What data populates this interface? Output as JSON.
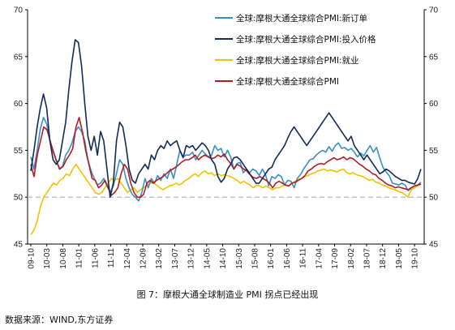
{
  "caption": "图 7：摩根大通全球制造业 PMI 拐点已经出现",
  "source": "数据来源：WIND,东方证券",
  "chart_data": {
    "type": "line",
    "title": "",
    "xlabel": "",
    "ylabel": "",
    "ylim": [
      45,
      70
    ],
    "y_ticks": [
      45,
      50,
      55,
      60,
      65,
      70
    ],
    "y_right_ticks": [
      45,
      50,
      55,
      60,
      65,
      70
    ],
    "reference_line": 50,
    "x_tick_labels": [
      "09-10",
      "10-03",
      "10-08",
      "11-01",
      "11-06",
      "11-11",
      "12-04",
      "12-09",
      "13-02",
      "13-07",
      "13-12",
      "14-05",
      "14-10",
      "15-03",
      "15-08",
      "16-01",
      "16-06",
      "16-11",
      "17-04",
      "17-09",
      "18-02",
      "18-07",
      "18-12",
      "19-05",
      "19-10"
    ],
    "x_start": "2009-10",
    "legend_position": "top-center",
    "colors": {
      "new_orders": "#3A8FC4",
      "input_prices": "#132B57",
      "employment": "#F2C200",
      "composite": "#B01E23",
      "reference": "#BBBBBB"
    },
    "series": [
      {
        "name": "全球:摩根大通全球综合PMI:新订单",
        "color": "#3A8FC4",
        "values": [
          54.3,
          53.0,
          55.0,
          57.3,
          58.5,
          57.8,
          56.0,
          55.0,
          54.0,
          53.0,
          53.3,
          54.5,
          55.0,
          55.8,
          57.0,
          57.5,
          57.0,
          56.0,
          54.0,
          52.8,
          52.0,
          51.3,
          51.5,
          52.0,
          51.2,
          50.5,
          51.2,
          52.5,
          54.0,
          53.5,
          52.0,
          51.0,
          50.3,
          50.0,
          49.6,
          50.5,
          52.0,
          51.0,
          52.0,
          51.5,
          52.3,
          51.8,
          52.5,
          52.0,
          53.0,
          52.0,
          53.5,
          55.0,
          54.3,
          54.5,
          54.5,
          54.8,
          54.0,
          54.5,
          55.0,
          54.6,
          54.3,
          54.5,
          55.5,
          55.0,
          55.2,
          54.3,
          55.0,
          54.3,
          53.0,
          53.6,
          53.7,
          52.6,
          53.0,
          52.6,
          53.0,
          52.8,
          52.3,
          53.0,
          52.4,
          51.2,
          52.2,
          52.0,
          52.4,
          52.2,
          51.3,
          51.8,
          51.7,
          51.0,
          52.0,
          52.4,
          53.0,
          53.5,
          54.0,
          54.1,
          54.5,
          54.8,
          55.0,
          54.8,
          55.4,
          54.9,
          55.5,
          55.8,
          55.2,
          55.3,
          55.0,
          55.2,
          54.8,
          54.3,
          54.7,
          54.4,
          55.0,
          55.5,
          54.8,
          55.3,
          54.2,
          53.2,
          52.7,
          52.3,
          51.5,
          51.4,
          51.3,
          51.5,
          51.3,
          50.7,
          51.0,
          51.2,
          51.3,
          51.6
        ]
      },
      {
        "name": "全球:摩根大通全球综合PMI:投入价格",
        "color": "#132B57",
        "values": [
          52.8,
          55.0,
          57.5,
          59.5,
          61.0,
          59.5,
          56.0,
          54.0,
          53.5,
          54.0,
          56.0,
          58.0,
          61.5,
          64.5,
          66.8,
          66.5,
          64.0,
          60.0,
          56.5,
          55.0,
          56.5,
          54.5,
          57.0,
          56.0,
          53.0,
          50.0,
          51.5,
          56.0,
          58.0,
          57.5,
          55.5,
          53.0,
          51.8,
          51.5,
          52.5,
          53.0,
          53.5,
          53.0,
          54.5,
          54.0,
          55.0,
          55.5,
          55.2,
          56.0,
          55.5,
          55.8,
          56.0,
          55.0,
          54.2,
          55.5,
          55.3,
          55.5,
          55.0,
          55.4,
          55.8,
          55.5,
          55.0,
          54.0,
          53.5,
          52.2,
          51.6,
          52.0,
          53.0,
          53.5,
          54.2,
          54.3,
          54.0,
          53.5,
          53.0,
          52.5,
          52.0,
          51.5,
          51.5,
          52.0,
          52.5,
          53.0,
          53.2,
          54.0,
          54.5,
          55.0,
          55.5,
          56.3,
          57.0,
          57.5,
          57.0,
          56.5,
          56.0,
          55.5,
          56.0,
          56.5,
          57.0,
          57.5,
          58.0,
          58.5,
          59.0,
          58.5,
          58.0,
          57.5,
          57.0,
          56.5,
          56.0,
          56.5,
          55.5,
          55.0,
          54.5,
          54.0,
          54.5,
          54.0,
          53.5,
          53.0,
          52.5,
          52.7,
          53.0,
          52.8,
          52.5,
          52.2,
          52.0,
          51.8,
          51.8,
          51.6,
          51.5,
          51.4,
          52.0,
          53.0
        ]
      },
      {
        "name": "全球:摩根大通全球综合PMI:就业",
        "color": "#F2C200",
        "values": [
          46.0,
          46.5,
          47.5,
          49.0,
          50.0,
          50.5,
          51.0,
          51.5,
          51.3,
          51.8,
          52.0,
          52.5,
          52.3,
          53.0,
          53.5,
          53.0,
          52.5,
          52.0,
          51.5,
          51.0,
          50.5,
          50.3,
          50.5,
          51.0,
          51.5,
          52.0,
          51.8,
          52.0,
          51.5,
          51.0,
          50.5,
          50.8,
          51.0,
          50.5,
          50.8,
          51.0,
          51.3,
          51.5,
          51.5,
          51.3,
          51.0,
          50.8,
          51.0,
          51.2,
          51.3,
          51.5,
          51.3,
          51.5,
          51.8,
          52.0,
          52.3,
          52.5,
          52.2,
          52.6,
          52.8,
          52.5,
          52.6,
          52.3,
          52.5,
          52.3,
          52.4,
          52.3,
          52.2,
          52.0,
          51.8,
          51.5,
          51.7,
          51.5,
          51.3,
          51.0,
          51.3,
          51.2,
          51.0,
          51.2,
          51.0,
          50.8,
          51.0,
          51.0,
          51.2,
          51.3,
          51.2,
          51.5,
          51.7,
          51.9,
          52.0,
          52.2,
          52.3,
          52.5,
          52.6,
          52.8,
          52.9,
          53.0,
          52.8,
          52.9,
          52.8,
          52.7,
          52.9,
          53.0,
          52.6,
          52.5,
          52.6,
          52.4,
          52.3,
          52.2,
          52.0,
          51.8,
          51.9,
          51.6,
          51.5,
          51.3,
          51.2,
          51.0,
          50.9,
          50.8,
          50.6,
          50.5,
          50.3,
          50.0,
          50.8,
          51.0,
          51.2,
          51.4
        ]
      },
      {
        "name": "全球:摩根大通全球综合PMI",
        "color": "#B01E23",
        "values": [
          53.5,
          52.2,
          54.5,
          56.0,
          57.5,
          57.2,
          56.0,
          54.8,
          53.8,
          53.0,
          53.3,
          54.0,
          54.5,
          55.2,
          57.5,
          58.5,
          57.0,
          55.0,
          53.5,
          52.0,
          51.8,
          51.0,
          51.3,
          51.8,
          51.0,
          50.2,
          50.5,
          51.0,
          52.5,
          53.5,
          53.0,
          51.5,
          50.5,
          50.0,
          50.0,
          50.3,
          51.5,
          51.8,
          51.5,
          51.8,
          52.0,
          52.2,
          52.5,
          52.8,
          53.0,
          53.2,
          53.5,
          53.8,
          54.0,
          54.0,
          54.2,
          54.5,
          54.0,
          54.3,
          54.5,
          54.3,
          54.1,
          54.2,
          54.5,
          54.3,
          54.6,
          54.0,
          53.6,
          53.0,
          53.5,
          53.3,
          53.0,
          52.8,
          52.4,
          52.1,
          52.0,
          52.2,
          52.0,
          51.8,
          51.5,
          51.0,
          51.5,
          51.7,
          51.5,
          51.3,
          51.2,
          51.5,
          51.6,
          51.8,
          52.0,
          52.3,
          52.8,
          53.0,
          53.3,
          53.5,
          53.6,
          53.5,
          53.8,
          54.0,
          54.2,
          54.0,
          54.1,
          54.3,
          54.0,
          54.2,
          54.1,
          53.8,
          53.5,
          53.3,
          53.0,
          52.8,
          52.5,
          52.4,
          52.0,
          51.8,
          51.5,
          51.3,
          51.2,
          51.0,
          51.1,
          51.0,
          50.9,
          50.8,
          51.0,
          51.2,
          51.3,
          51.4
        ]
      }
    ]
  }
}
